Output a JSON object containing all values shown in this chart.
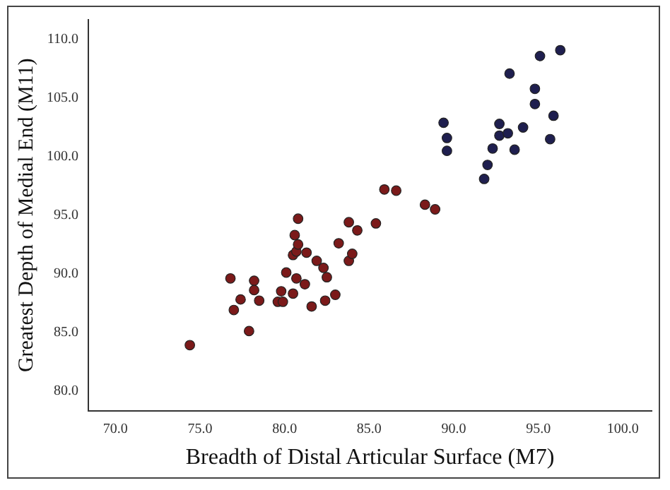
{
  "chart_data": {
    "type": "scatter",
    "xlabel": "Breadth of Distal Articular Surface (M7)",
    "ylabel": "Greatest Depth of Medial End (M11)",
    "xlim": [
      68.4,
      101.7
    ],
    "ylim": [
      78.3,
      111.7
    ],
    "xticks": [
      {
        "value": 70,
        "label": "70.0"
      },
      {
        "value": 75,
        "label": "75.0"
      },
      {
        "value": 80,
        "label": "80.0"
      },
      {
        "value": 85,
        "label": "85.0"
      },
      {
        "value": 90,
        "label": "90.0"
      },
      {
        "value": 95,
        "label": "95.0"
      },
      {
        "value": 100,
        "label": "100.0"
      }
    ],
    "yticks": [
      {
        "value": 80,
        "label": "80.0"
      },
      {
        "value": 85,
        "label": "85.0"
      },
      {
        "value": 90,
        "label": "90.0"
      },
      {
        "value": 95,
        "label": "95.0"
      },
      {
        "value": 100,
        "label": "100.0"
      },
      {
        "value": 105,
        "label": "105.0"
      },
      {
        "value": 110,
        "label": "110.0"
      }
    ],
    "grid": false,
    "legend": false,
    "marker": "circle",
    "series": [
      {
        "color": "#7b1a1a",
        "x": [
          74.4,
          76.8,
          77.0,
          77.4,
          77.9,
          78.2,
          78.2,
          78.5,
          79.6,
          79.8,
          79.9,
          80.1,
          80.5,
          80.5,
          80.6,
          80.7,
          80.7,
          80.8,
          80.8,
          81.2,
          81.3,
          81.6,
          81.9,
          82.3,
          82.4,
          82.5,
          83.0,
          83.2,
          83.8,
          83.8,
          84.0,
          84.3,
          85.4,
          85.9,
          86.6,
          88.3,
          88.9
        ],
        "values": [
          83.9,
          89.6,
          86.9,
          87.8,
          85.1,
          89.4,
          88.6,
          87.7,
          87.6,
          88.5,
          87.6,
          90.1,
          88.3,
          91.6,
          93.3,
          91.9,
          89.6,
          92.5,
          94.7,
          89.1,
          91.8,
          87.2,
          91.1,
          90.5,
          87.7,
          89.7,
          88.2,
          92.6,
          91.1,
          94.4,
          91.7,
          93.7,
          94.3,
          97.2,
          97.1,
          95.9,
          95.5
        ]
      },
      {
        "color": "#1f1f4f",
        "x": [
          89.4,
          89.6,
          89.6,
          91.8,
          92.0,
          92.3,
          92.7,
          92.7,
          93.2,
          93.3,
          93.6,
          94.1,
          94.8,
          94.8,
          95.1,
          95.7,
          95.9,
          96.3
        ],
        "values": [
          102.9,
          101.6,
          100.5,
          98.1,
          99.3,
          100.7,
          102.8,
          101.8,
          102.0,
          107.1,
          100.6,
          102.5,
          104.5,
          105.8,
          108.6,
          101.5,
          103.5,
          109.1
        ]
      }
    ]
  }
}
